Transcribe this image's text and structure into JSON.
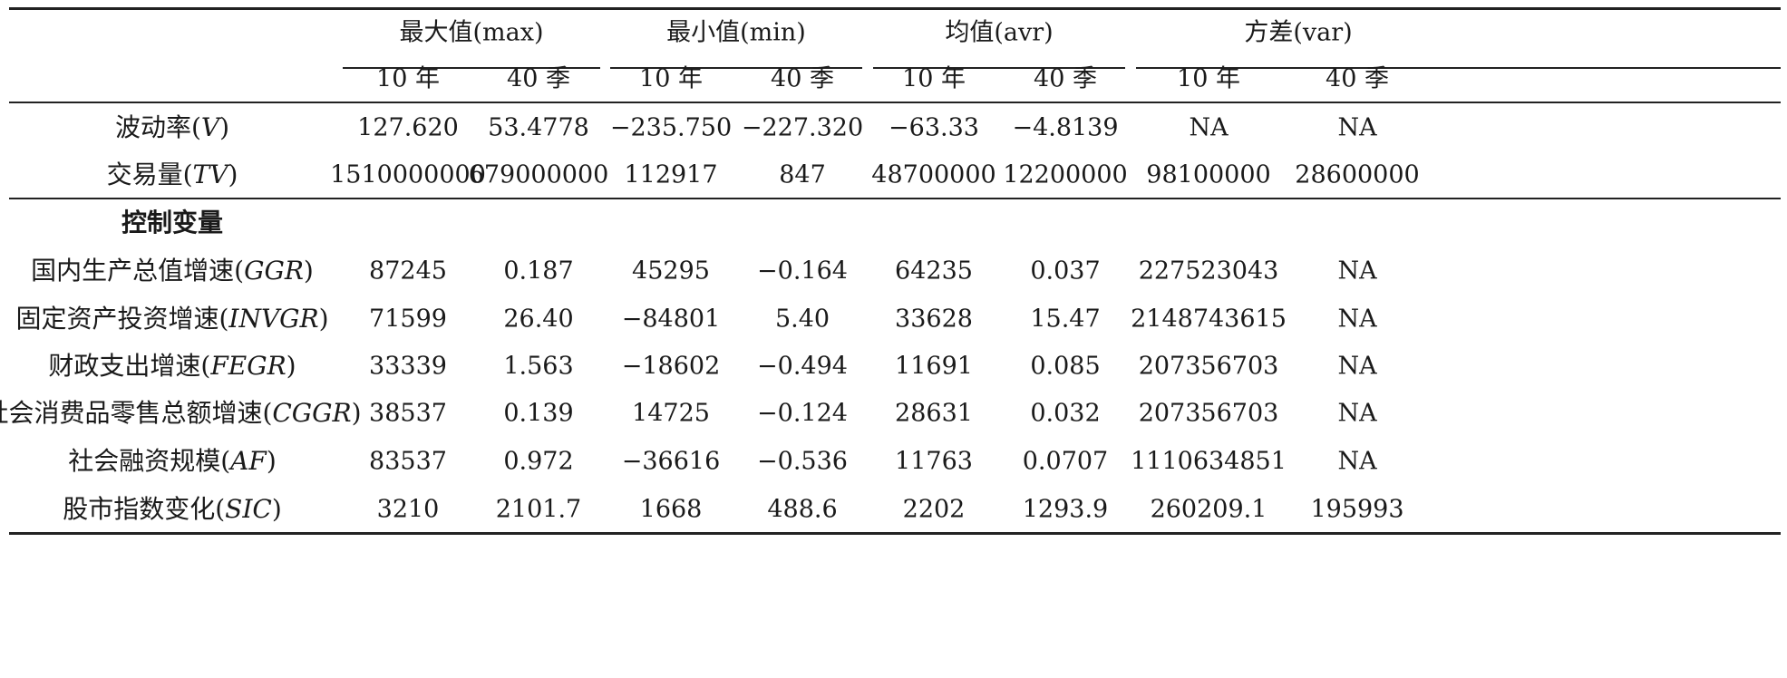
{
  "groups": [
    {
      "label": "最大值(max)"
    },
    {
      "label": "最小值(min)"
    },
    {
      "label": "均值(avr)"
    },
    {
      "label": "方差(var)"
    }
  ],
  "subcols": [
    "10 年",
    "40 季",
    "10 年",
    "40 季",
    "10 年",
    "40 季",
    "10 年",
    "40 季"
  ],
  "rows_main": [
    {
      "label_pre": "波动率(",
      "abbr": "V",
      "label_post": ")",
      "cells": [
        "127.620",
        "53.4778",
        "−235.750",
        "−227.320",
        "−63.33",
        "−4.8139",
        "NA",
        "NA"
      ]
    },
    {
      "label_pre": "交易量(",
      "abbr": "TV",
      "label_post": ")",
      "cells": [
        "1510000000",
        "679000000",
        "112917",
        "847",
        "48700000",
        "12200000",
        "98100000",
        "28600000"
      ]
    }
  ],
  "section_label": "控制变量",
  "rows_control": [
    {
      "label_pre": "国内生产总值增速(",
      "abbr": "GGR",
      "label_post": ")",
      "cells": [
        "87245",
        "0.187",
        "45295",
        "−0.164",
        "64235",
        "0.037",
        "227523043",
        "NA"
      ]
    },
    {
      "label_pre": "固定资产投资增速(",
      "abbr": "INVGR",
      "label_post": ")",
      "cells": [
        "71599",
        "26.40",
        "−84801",
        "5.40",
        "33628",
        "15.47",
        "2148743615",
        "NA"
      ]
    },
    {
      "label_pre": "财政支出增速(",
      "abbr": "FEGR",
      "label_post": ")",
      "cells": [
        "33339",
        "1.563",
        "−18602",
        "−0.494",
        "11691",
        "0.085",
        "207356703",
        "NA"
      ]
    },
    {
      "label_pre": "社会消费品零售总额增速(",
      "abbr": "CGGR",
      "label_post": ")",
      "cells": [
        "38537",
        "0.139",
        "14725",
        "−0.124",
        "28631",
        "0.032",
        "207356703",
        "NA"
      ]
    },
    {
      "label_pre": "社会融资规模(",
      "abbr": "AF",
      "label_post": ")",
      "cells": [
        "83537",
        "0.972",
        "−36616",
        "−0.536",
        "11763",
        "0.0707",
        "1110634851",
        "NA"
      ]
    },
    {
      "label_pre": "股市指数变化(",
      "abbr": "SIC",
      "label_post": ")",
      "cells": [
        "3210",
        "2101.7",
        "1668",
        "488.6",
        "2202",
        "1293.9",
        "260209.1",
        "195993"
      ]
    }
  ]
}
